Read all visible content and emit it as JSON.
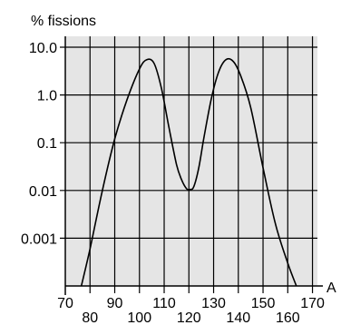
{
  "chart_data": {
    "type": "line",
    "title": "",
    "ylabel": "% fissions",
    "xlabel": "A",
    "x_scale": "linear",
    "y_scale": "log",
    "xlim": [
      70,
      172
    ],
    "ylim": [
      0.0001,
      10
    ],
    "grid": true,
    "plot_background": "#e5e5e5",
    "line_color": "#000000",
    "y_ticks": [
      {
        "value": 10,
        "label": "10.0"
      },
      {
        "value": 1,
        "label": "1.0"
      },
      {
        "value": 0.1,
        "label": "0.1"
      },
      {
        "value": 0.01,
        "label": "0.01"
      },
      {
        "value": 0.001,
        "label": "0.001"
      }
    ],
    "x_ticks_upper": [
      {
        "value": 70,
        "label": "70"
      },
      {
        "value": 90,
        "label": "90"
      },
      {
        "value": 110,
        "label": "110"
      },
      {
        "value": 130,
        "label": "130"
      },
      {
        "value": 150,
        "label": "150"
      },
      {
        "value": 170,
        "label": "170"
      }
    ],
    "x_ticks_lower": [
      {
        "value": 80,
        "label": "80"
      },
      {
        "value": 100,
        "label": "100"
      },
      {
        "value": 120,
        "label": "120"
      },
      {
        "value": 140,
        "label": "140"
      },
      {
        "value": 160,
        "label": "160"
      }
    ],
    "series": [
      {
        "x": [
          76.5,
          80,
          85,
          90,
          95,
          100,
          103,
          106,
          109,
          112,
          115,
          117,
          119,
          120.5,
          122,
          124,
          126,
          129,
          132,
          135,
          138,
          141,
          145,
          150,
          155,
          160,
          163.5
        ],
        "y": [
          0.0001,
          0.0006,
          0.01,
          0.12,
          0.8,
          3.5,
          5.5,
          4.5,
          1.3,
          0.2,
          0.035,
          0.017,
          0.011,
          0.0105,
          0.012,
          0.03,
          0.12,
          0.8,
          3.0,
          5.5,
          5.0,
          2.5,
          0.55,
          0.03,
          0.002,
          0.0003,
          0.0001
        ]
      }
    ]
  }
}
